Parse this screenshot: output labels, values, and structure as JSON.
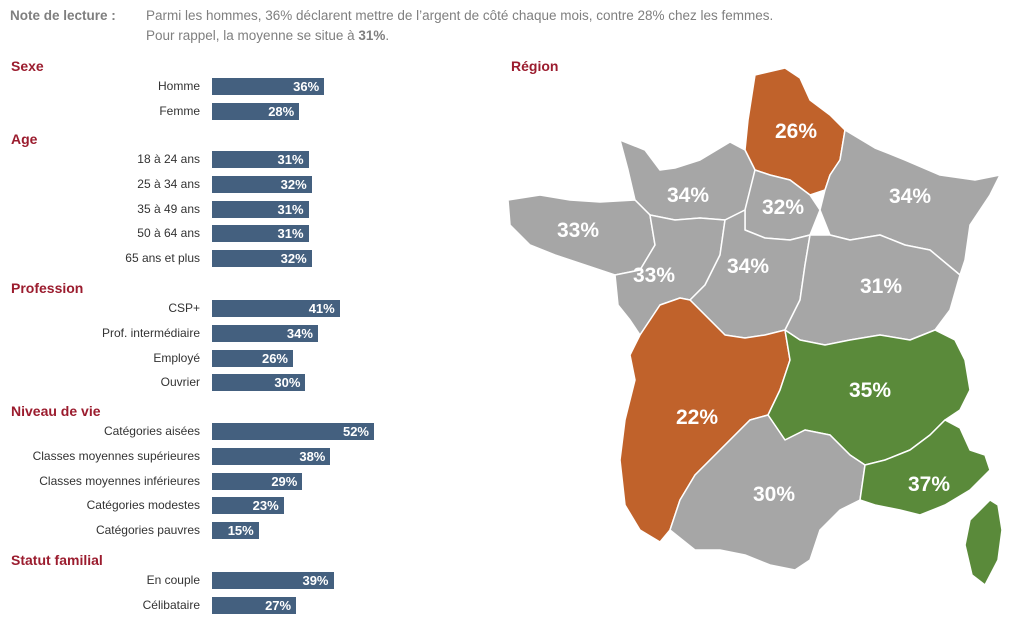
{
  "note": {
    "label": "Note de lecture :",
    "line1": "Parmi les hommes, 36% déclarent mettre de l’argent de côté chaque mois, contre 28% chez les femmes.",
    "line2_prefix": "Pour rappel, la moyenne se situe à ",
    "line2_value": "31%",
    "line2_suffix": "."
  },
  "colors": {
    "bar": "#44607f",
    "section_title": "#9b1c2e",
    "region_low": "#c0622b",
    "region_mid": "#a6a6a6",
    "region_high": "#5a8a3a"
  },
  "chart_data": [
    {
      "type": "bar",
      "orientation": "horizontal",
      "sections": [
        {
          "title": "Sexe",
          "items": [
            {
              "label": "Homme",
              "value": 36,
              "display": "36%"
            },
            {
              "label": "Femme",
              "value": 28,
              "display": "28%"
            }
          ]
        },
        {
          "title": "Age",
          "items": [
            {
              "label": "18 à 24 ans",
              "value": 31,
              "display": "31%"
            },
            {
              "label": "25 à 34 ans",
              "value": 32,
              "display": "32%"
            },
            {
              "label": "35 à 49 ans",
              "value": 31,
              "display": "31%"
            },
            {
              "label": "50 à 64 ans",
              "value": 31,
              "display": "31%"
            },
            {
              "label": "65 ans et plus",
              "value": 32,
              "display": "32%"
            }
          ]
        },
        {
          "title": "Profession",
          "items": [
            {
              "label": "CSP+",
              "value": 41,
              "display": "41%"
            },
            {
              "label": "Prof. intermédiaire",
              "value": 34,
              "display": "34%"
            },
            {
              "label": "Employé",
              "value": 26,
              "display": "26%"
            },
            {
              "label": "Ouvrier",
              "value": 30,
              "display": "30%"
            }
          ]
        },
        {
          "title": "Niveau de vie",
          "items": [
            {
              "label": "Catégories aisées",
              "value": 52,
              "display": "52%"
            },
            {
              "label": "Classes moyennes supérieures",
              "value": 38,
              "display": "38%"
            },
            {
              "label": "Classes moyennes inférieures",
              "value": 29,
              "display": "29%"
            },
            {
              "label": "Catégories modestes",
              "value": 23,
              "display": "23%"
            },
            {
              "label": "Catégories pauvres",
              "value": 15,
              "display": "15%"
            }
          ]
        },
        {
          "title": "Statut familial",
          "items": [
            {
              "label": "En couple",
              "value": 39,
              "display": "39%"
            },
            {
              "label": "Célibataire",
              "value": 27,
              "display": "27%"
            }
          ]
        }
      ]
    },
    {
      "type": "map",
      "title": "Région",
      "regions": [
        {
          "id": "hauts-de-france",
          "value": 26,
          "display": "26%",
          "color": "#c0622b"
        },
        {
          "id": "normandie",
          "value": 34,
          "display": "34%",
          "color": "#a6a6a6"
        },
        {
          "id": "ile-de-france",
          "value": 32,
          "display": "32%",
          "color": "#a6a6a6"
        },
        {
          "id": "grand-est",
          "value": 34,
          "display": "34%",
          "color": "#a6a6a6"
        },
        {
          "id": "bretagne",
          "value": 33,
          "display": "33%",
          "color": "#a6a6a6"
        },
        {
          "id": "pays-de-la-loire",
          "value": 33,
          "display": "33%",
          "color": "#a6a6a6"
        },
        {
          "id": "centre-val-de-loire",
          "value": 34,
          "display": "34%",
          "color": "#a6a6a6"
        },
        {
          "id": "bourgogne-franche-comte",
          "value": 31,
          "display": "31%",
          "color": "#a6a6a6"
        },
        {
          "id": "nouvelle-aquitaine",
          "value": 22,
          "display": "22%",
          "color": "#c0622b"
        },
        {
          "id": "auvergne-rhone-alpes",
          "value": 35,
          "display": "35%",
          "color": "#5a8a3a"
        },
        {
          "id": "occitanie",
          "value": 30,
          "display": "30%",
          "color": "#a6a6a6"
        },
        {
          "id": "provence-alpes-cote-dazur-corse",
          "value": 37,
          "display": "37%",
          "color": "#5a8a3a"
        }
      ]
    }
  ]
}
